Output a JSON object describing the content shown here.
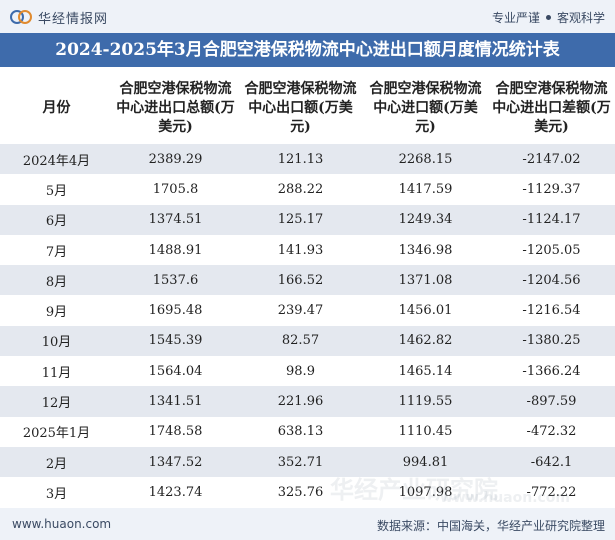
{
  "header": {
    "brand_name": "华经情报网",
    "slogan_left": "专业严谨",
    "slogan_right": "客观科学"
  },
  "title": "2024-2025年3月合肥空港保税物流中心进出口额月度情况统计表",
  "columns": [
    "月份",
    "合肥空港保税物流中心进出口总额(万美元)",
    "合肥空港保税物流中心出口额(万美元)",
    "合肥空港保税物流中心进口额(万美元)",
    "合肥空港保税物流中心进出口差额(万美元)"
  ],
  "rows": [
    [
      "2024年4月",
      "2389.29",
      "121.13",
      "2268.15",
      "-2147.02"
    ],
    [
      "5月",
      "1705.8",
      "288.22",
      "1417.59",
      "-1129.37"
    ],
    [
      "6月",
      "1374.51",
      "125.17",
      "1249.34",
      "-1124.17"
    ],
    [
      "7月",
      "1488.91",
      "141.93",
      "1346.98",
      "-1205.05"
    ],
    [
      "8月",
      "1537.6",
      "166.52",
      "1371.08",
      "-1204.56"
    ],
    [
      "9月",
      "1695.48",
      "239.47",
      "1456.01",
      "-1216.54"
    ],
    [
      "10月",
      "1545.39",
      "82.57",
      "1462.82",
      "-1380.25"
    ],
    [
      "11月",
      "1564.04",
      "98.9",
      "1465.14",
      "-1366.24"
    ],
    [
      "12月",
      "1341.51",
      "221.96",
      "1119.55",
      "-897.59"
    ],
    [
      "2025年1月",
      "1748.58",
      "638.13",
      "1110.45",
      "-472.32"
    ],
    [
      "2月",
      "1347.52",
      "352.71",
      "994.81",
      "-642.1"
    ],
    [
      "3月",
      "1423.74",
      "325.76",
      "1097.98",
      "-772.22"
    ]
  ],
  "watermarks": [
    "华经产业研究院",
    "www.huaon.com"
  ],
  "footer": {
    "website": "www.huaon.com",
    "source": "数据来源：中国海关，华经产业研究院整理"
  },
  "colors": {
    "title_bg": "#3e6bab",
    "band_bg": "#eef2f8",
    "stripe": "#e4e8ef"
  }
}
